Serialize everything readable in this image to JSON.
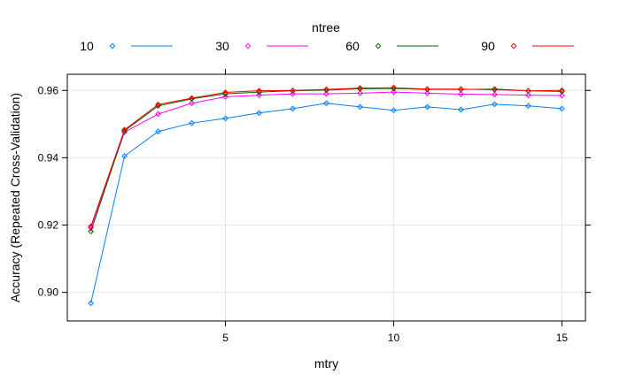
{
  "chart_data": {
    "type": "line",
    "title": "",
    "xlabel": "mtry",
    "ylabel": "Accuracy (Repeated Cross-Validation)",
    "xlim": [
      0.3,
      15.7
    ],
    "ylim": [
      0.8915,
      0.9648
    ],
    "x_ticks": [
      5,
      10,
      15
    ],
    "y_ticks": [
      0.9,
      0.92,
      0.94,
      0.96
    ],
    "y_tick_labels": [
      "0.90",
      "0.92",
      "0.94",
      "0.96"
    ],
    "grid": true,
    "legend": {
      "title": "ntree",
      "position": "top"
    },
    "x": [
      1,
      2,
      3,
      4,
      5,
      6,
      7,
      8,
      9,
      10,
      11,
      12,
      13,
      14,
      15
    ],
    "series": [
      {
        "name": "10",
        "color": "#0080ff",
        "values": [
          0.8968,
          0.9405,
          0.9478,
          0.9503,
          0.9517,
          0.9533,
          0.9546,
          0.9562,
          0.9551,
          0.9541,
          0.9551,
          0.9543,
          0.9559,
          0.9554,
          0.9546
        ]
      },
      {
        "name": "30",
        "color": "#ff00ff",
        "values": [
          0.9192,
          0.9476,
          0.953,
          0.9562,
          0.9581,
          0.9586,
          0.959,
          0.959,
          0.9592,
          0.9595,
          0.9592,
          0.9589,
          0.9588,
          0.9586,
          0.9585
        ]
      },
      {
        "name": "60",
        "color": "#006400",
        "values": [
          0.9181,
          0.948,
          0.9554,
          0.9575,
          0.959,
          0.9595,
          0.9599,
          0.9601,
          0.9605,
          0.9606,
          0.9603,
          0.9603,
          0.9604,
          0.9599,
          0.9597
        ]
      },
      {
        "name": "90",
        "color": "#ff0000",
        "values": [
          0.9196,
          0.9483,
          0.9558,
          0.9577,
          0.9594,
          0.9599,
          0.96,
          0.9603,
          0.9607,
          0.9608,
          0.9604,
          0.9604,
          0.9602,
          0.9599,
          0.96
        ]
      }
    ]
  }
}
